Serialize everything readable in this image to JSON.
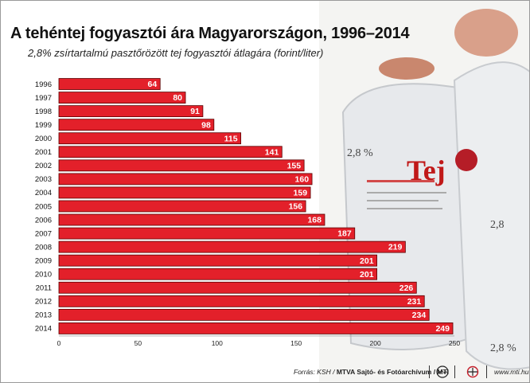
{
  "title": "A tehéntej fogyasztói ára Magyarországon, 1996–2014",
  "subtitle": "2,8% zsírtartalmú pasztőrözött tej fogyasztói átlagára (forint/liter)",
  "footer": {
    "source_prefix": "Forrás: KSH / ",
    "source_bold": "MTVA Sajtó- és Fotóarchívum / MTI",
    "mtva_logo": "MTVA",
    "url": "www.mti.hu"
  },
  "colors": {
    "bar": "#e3202a",
    "bar_border": "#5a0000",
    "text": "#111111",
    "grid": "#bbbbbb"
  },
  "chart_data": {
    "type": "bar",
    "orientation": "horizontal",
    "categories": [
      "1996",
      "1997",
      "1998",
      "1999",
      "2000",
      "2001",
      "2002",
      "2003",
      "2004",
      "2005",
      "2006",
      "2007",
      "2008",
      "2009",
      "2010",
      "2011",
      "2012",
      "2013",
      "2014"
    ],
    "values": [
      64,
      80,
      91,
      98,
      115,
      141,
      155,
      160,
      159,
      156,
      168,
      187,
      219,
      201,
      201,
      226,
      231,
      234,
      249
    ],
    "xticks": [
      0,
      50,
      100,
      150,
      200,
      250
    ],
    "xlim": [
      0,
      250
    ],
    "data_labels": true,
    "title": "A tehéntej fogyasztói ára Magyarországon, 1996–2014",
    "subtitle": "2,8% zsírtartalmú pasztőrözött tej fogyasztói átlagára (forint/liter)"
  }
}
